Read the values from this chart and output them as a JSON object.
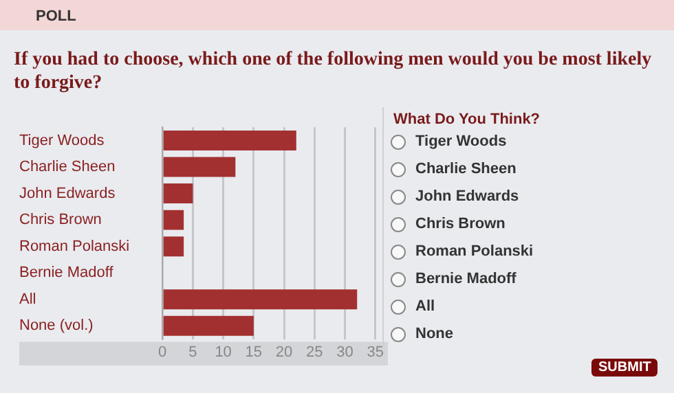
{
  "chart_data": [
    {
      "type": "bar",
      "title": "If you had to choose, which one of the following men would you be most likely to forgive?",
      "annotations": [
        "POLL"
      ],
      "orientation": "horizontal",
      "categories": [
        "Tiger Woods",
        "Charlie Sheen",
        "John Edwards",
        "Chris Brown",
        "Roman Polanski",
        "Bernie Madoff",
        "All",
        "None (vol.)"
      ],
      "values": [
        22,
        12,
        5,
        3.5,
        3.5,
        0,
        32,
        15
      ],
      "color": "#a33030",
      "xlim": [
        0,
        35
      ],
      "xticks": [
        0,
        5,
        10,
        15,
        20,
        25,
        30,
        35
      ],
      "grid": "x",
      "legend": false
    },
    {
      "type": "other",
      "title": "What Do You Think?",
      "annotations": [
        "Tiger Woods",
        "Charlie Sheen",
        "John Edwards",
        "Chris Brown",
        "Roman Polanski",
        "Bernie Madoff",
        "All",
        "None",
        "SUBMIT"
      ]
    }
  ]
}
